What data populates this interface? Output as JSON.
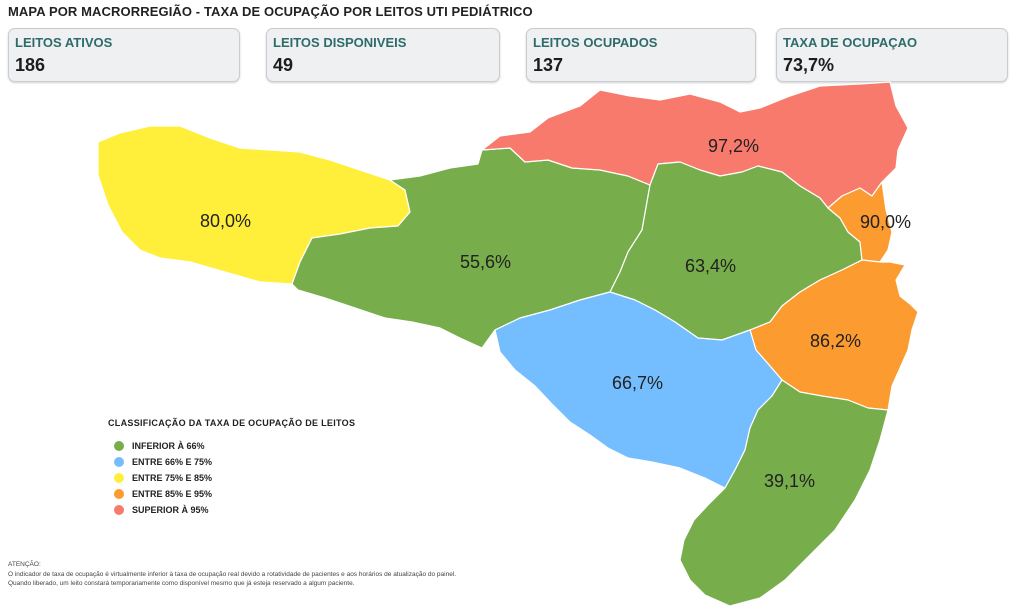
{
  "title": "MAPA POR MACRORREGIÃO - TAXA DE OCUPAÇÃO POR LEITOS UTI PEDIÁTRICO",
  "kpis": [
    {
      "label": "LEITOS ATIVOS",
      "value": "186"
    },
    {
      "label": "LEITOS DISPONIVEIS",
      "value": "49"
    },
    {
      "label": "LEITOS OCUPADOS",
      "value": "137"
    },
    {
      "label": "TAXA DE OCUPAÇAO",
      "value": "73,7%"
    }
  ],
  "regions": [
    {
      "value": "80,0%",
      "color": "#ffef3a"
    },
    {
      "value": "55,6%",
      "color": "#77ad4a"
    },
    {
      "value": "97,2%",
      "color": "#f77a6c"
    },
    {
      "value": "63,4%",
      "color": "#77ad4a"
    },
    {
      "value": "90,0%",
      "color": "#fb9b30"
    },
    {
      "value": "86,2%",
      "color": "#fb9b30"
    },
    {
      "value": "66,7%",
      "color": "#74beff"
    },
    {
      "value": "39,1%",
      "color": "#77ad4a"
    }
  ],
  "legend": {
    "title": "CLASSIFICAÇÃO DA TAXA DE OCUPAÇÃO DE LEITOS",
    "items": [
      {
        "label": "INFERIOR À 66%",
        "color": "#77ad4a"
      },
      {
        "label": "ENTRE 66% E 75%",
        "color": "#74beff"
      },
      {
        "label": "ENTRE 75% E 85%",
        "color": "#ffef3a"
      },
      {
        "label": "ENTRE 85% E 95%",
        "color": "#fb9b30"
      },
      {
        "label": "SUPERIOR À 95%",
        "color": "#f77a6c"
      }
    ]
  },
  "notes": {
    "heading": "ATENÇÃO:",
    "line1": "O indicador de taxa de ocupação é virtualmente inferior à taxa de ocupação real devido a rotatividade de pacientes e aos horários de atualização do painel.",
    "line2": "Quando liberado, um leito constará temporariamente como disponível mesmo que já esteja reservado a algum paciente."
  }
}
